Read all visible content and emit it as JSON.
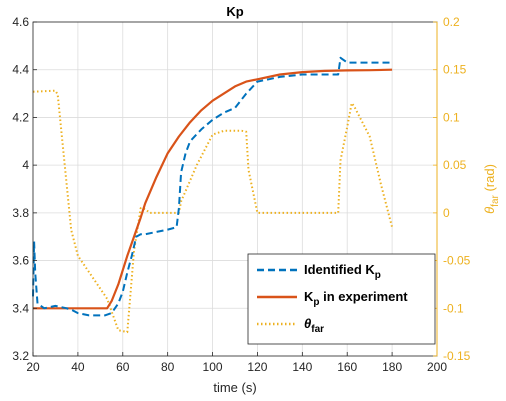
{
  "chart_data": {
    "type": "line",
    "title": "Kp",
    "xlabel": "time (s)",
    "ylabel_right": "θ_far (rad)",
    "ylabel_right_main": "θ",
    "ylabel_right_sub": "far",
    "ylabel_right_unit": " (rad)",
    "xlim": [
      20,
      200
    ],
    "ylim_left": [
      3.2,
      4.6
    ],
    "ylim_right": [
      -0.15,
      0.2
    ],
    "xticks": [
      "20",
      "40",
      "60",
      "80",
      "100",
      "120",
      "140",
      "160",
      "180",
      "200"
    ],
    "yticks_left": [
      "3.2",
      "3.4",
      "3.6",
      "3.8",
      "4",
      "4.2",
      "4.4",
      "4.6"
    ],
    "yticks_right": [
      "-0.15",
      "-0.1",
      "-0.05",
      "0",
      "0.05",
      "0.1",
      "0.15",
      "0.2"
    ],
    "grid": true,
    "legend_position": "bottom-right",
    "series": [
      {
        "name": "Identified Kp",
        "legend_main": "Identified K",
        "legend_sub": "p",
        "legend_rest": "",
        "axis": "left",
        "color": "#0072BD",
        "style": "dashed",
        "x": [
          20,
          20.5,
          21,
          22,
          25,
          30,
          35,
          38,
          40,
          45,
          50,
          52,
          55,
          58,
          60,
          62,
          64,
          65,
          66,
          68,
          70,
          75,
          80,
          84,
          85,
          86,
          88,
          90,
          95,
          100,
          105,
          110,
          115,
          120,
          125,
          130,
          140,
          150,
          156,
          157,
          160,
          170,
          180
        ],
        "y": [
          3.45,
          3.68,
          3.55,
          3.42,
          3.4,
          3.41,
          3.4,
          3.39,
          3.38,
          3.37,
          3.37,
          3.37,
          3.38,
          3.42,
          3.47,
          3.55,
          3.62,
          3.66,
          3.7,
          3.71,
          3.71,
          3.72,
          3.73,
          3.74,
          3.82,
          3.97,
          4.05,
          4.1,
          4.15,
          4.19,
          4.22,
          4.24,
          4.3,
          4.35,
          4.36,
          4.37,
          4.38,
          4.38,
          4.38,
          4.45,
          4.43,
          4.43,
          4.43
        ]
      },
      {
        "name": "Kp in experiment",
        "legend_main": "K",
        "legend_sub": "p",
        "legend_rest": " in experiment",
        "axis": "left",
        "color": "#D95319",
        "style": "solid",
        "x": [
          20,
          30,
          40,
          50,
          53,
          55,
          58,
          60,
          62,
          65,
          68,
          70,
          75,
          80,
          85,
          90,
          95,
          100,
          105,
          110,
          115,
          120,
          130,
          140,
          150,
          160,
          170,
          180
        ],
        "y": [
          3.4,
          3.4,
          3.4,
          3.4,
          3.4,
          3.43,
          3.5,
          3.56,
          3.62,
          3.7,
          3.78,
          3.84,
          3.95,
          4.05,
          4.12,
          4.18,
          4.23,
          4.27,
          4.3,
          4.33,
          4.35,
          4.36,
          4.38,
          4.39,
          4.395,
          4.397,
          4.398,
          4.4
        ]
      },
      {
        "name": "θfar",
        "legend_main": "θ",
        "legend_sub": "far",
        "legend_rest": "",
        "axis": "right",
        "color": "#EDB120",
        "style": "dotted",
        "x": [
          20,
          30,
          31,
          37,
          40,
          53,
          58,
          62,
          65,
          68,
          70,
          72,
          80,
          85,
          86,
          93,
          100,
          105,
          107,
          113,
          115,
          116,
          120,
          140,
          156,
          157,
          160,
          162,
          163,
          170,
          175,
          180
        ],
        "y": [
          0.127,
          0.128,
          0.124,
          -0.018,
          -0.045,
          -0.09,
          -0.123,
          -0.125,
          -0.04,
          0.005,
          0.004,
          0.0,
          0.0,
          0.0,
          0.012,
          0.05,
          0.082,
          0.086,
          0.086,
          0.086,
          0.085,
          0.045,
          0.0,
          0.0,
          0.0,
          0.055,
          0.09,
          0.115,
          0.112,
          0.08,
          0.03,
          -0.015
        ]
      }
    ]
  }
}
